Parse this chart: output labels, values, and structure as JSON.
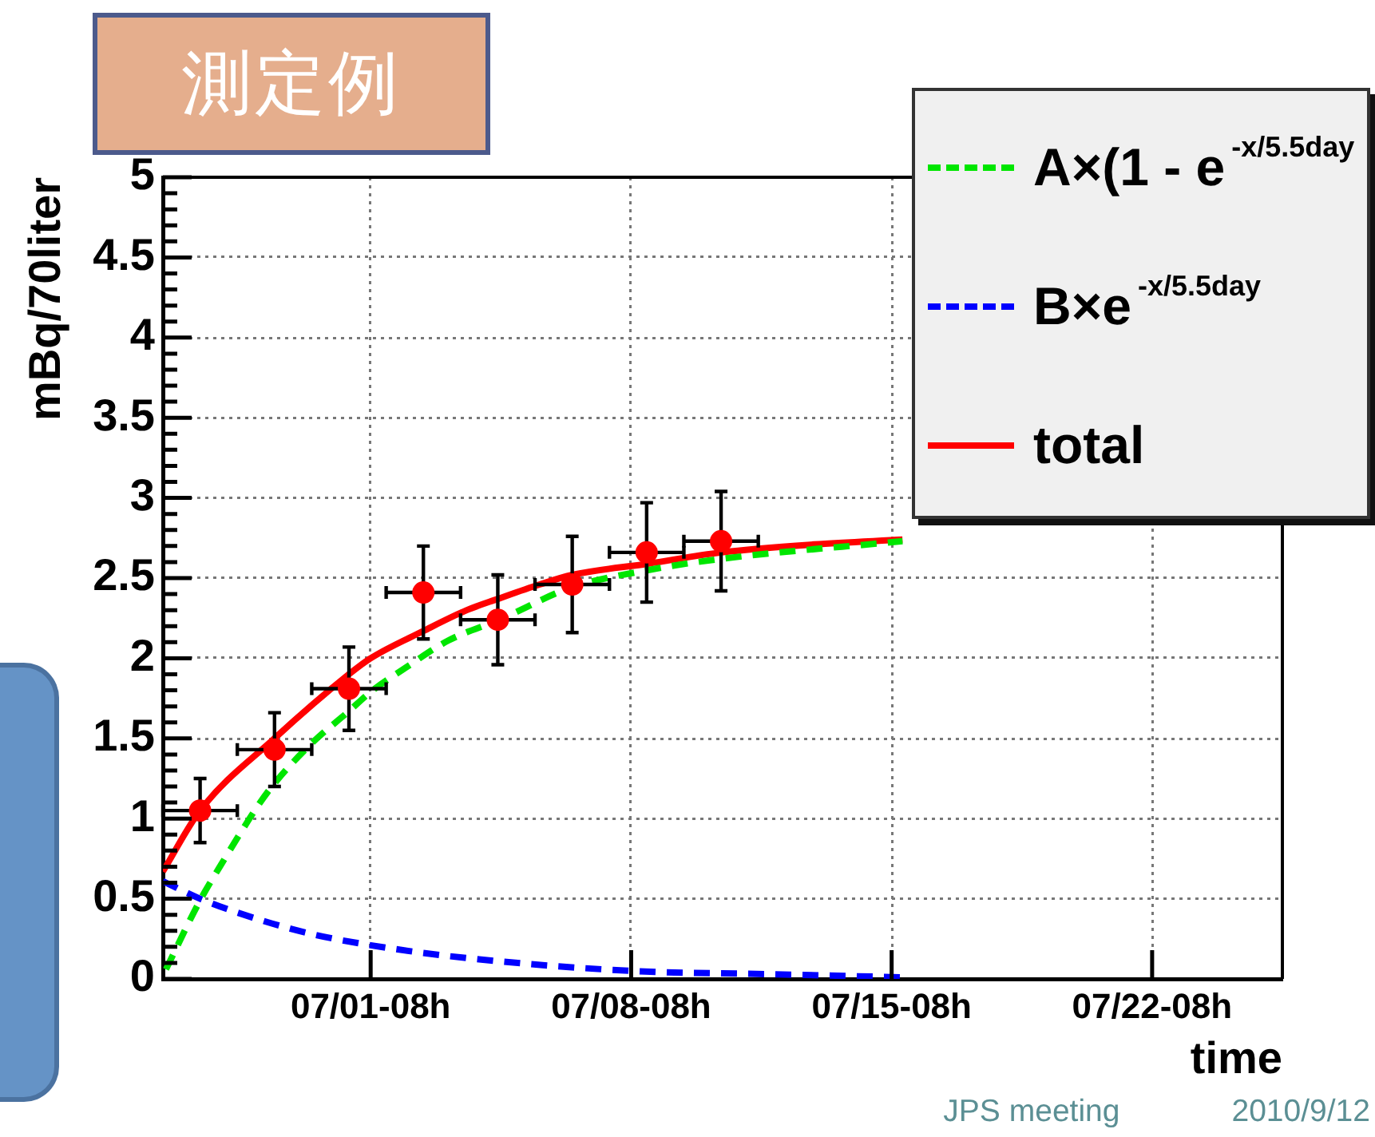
{
  "chart_data": {
    "type": "line",
    "title": "測定例",
    "xlabel": "time",
    "ylabel": "mBq/70liter",
    "annotations": [
      "JPS meeting",
      "2010/9/12"
    ],
    "xlim": [
      "--06-25T18:00",
      "--07-25T20:00"
    ],
    "xticks": [
      {
        "value": "--07-01T08:00",
        "label": "07/01-08h"
      },
      {
        "value": "--07-08T08:00",
        "label": "07/08-08h"
      },
      {
        "value": "--07-15T08:00",
        "label": "07/15-08h"
      },
      {
        "value": "--07-22T08:00",
        "label": "07/22-08h"
      }
    ],
    "ylim": [
      0,
      5
    ],
    "yticks": [
      0,
      {
        "value": 0.1,
        "label": null
      },
      {
        "value": 0.2,
        "label": null
      },
      {
        "value": 0.3,
        "label": null
      },
      {
        "value": 0.4,
        "label": null
      },
      0.5,
      {
        "value": 0.6,
        "label": null
      },
      {
        "value": 0.7,
        "label": null
      },
      {
        "value": 0.8,
        "label": null
      },
      {
        "value": 0.9,
        "label": null
      },
      1,
      {
        "value": 1.1,
        "label": null
      },
      {
        "value": 1.2,
        "label": null
      },
      {
        "value": 1.3,
        "label": null
      },
      {
        "value": 1.4,
        "label": null
      },
      1.5,
      {
        "value": 1.6,
        "label": null
      },
      {
        "value": 1.7,
        "label": null
      },
      {
        "value": 1.8,
        "label": null
      },
      {
        "value": 1.9,
        "label": null
      },
      2,
      {
        "value": 2.1,
        "label": null
      },
      {
        "value": 2.2,
        "label": null
      },
      {
        "value": 2.3,
        "label": null
      },
      {
        "value": 2.4,
        "label": null
      },
      2.5,
      {
        "value": 2.6,
        "label": null
      },
      {
        "value": 2.7,
        "label": null
      },
      {
        "value": 2.8,
        "label": null
      },
      {
        "value": 2.9,
        "label": null
      },
      3,
      {
        "value": 3.1,
        "label": null
      },
      {
        "value": 3.2,
        "label": null
      },
      {
        "value": 3.3,
        "label": null
      },
      {
        "value": 3.4,
        "label": null
      },
      3.5,
      {
        "value": 3.6,
        "label": null
      },
      {
        "value": 3.7,
        "label": null
      },
      {
        "value": 3.8,
        "label": null
      },
      {
        "value": 3.9,
        "label": null
      },
      4,
      {
        "value": 4.1,
        "label": null
      },
      {
        "value": 4.2,
        "label": null
      },
      {
        "value": 4.3,
        "label": null
      },
      {
        "value": 4.4,
        "label": null
      },
      4.5,
      {
        "value": 4.6,
        "label": null
      },
      {
        "value": 4.7,
        "label": null
      },
      {
        "value": 4.8,
        "label": null
      },
      {
        "value": 4.9,
        "label": null
      },
      5
    ],
    "grid": true,
    "legend": "top right",
    "series": [
      {
        "type": "scatter",
        "color": "#ff0000",
        "marker": "circle",
        "x": [
          "--06-26T18:00",
          "--06-28T18:00",
          "--06-30T18:00",
          "--07-02T18:00",
          "--07-04T18:00",
          "--07-06T18:00",
          "--07-08T18:00",
          "--07-10T18:00"
        ],
        "values": [
          1.05,
          1.43,
          1.81,
          2.41,
          2.24,
          2.46,
          2.66,
          2.73
        ],
        "errors": [
          0.2,
          0.23,
          0.26,
          0.29,
          0.28,
          0.3,
          0.31,
          0.31
        ],
        "xerrors": [
          1,
          1,
          1,
          1,
          1,
          1,
          1,
          1
        ]
      },
      {
        "name": "A×(1 - e$^{-x/5.5day}$",
        "color": "#00e600",
        "line_style": "dashed",
        "x": [
          "--06-25T20:00",
          "--06-26T18:00",
          "--06-27T08:00",
          "--06-28T08:00",
          "--06-28T18:00",
          "--06-29T18:00",
          "--06-30T18:00",
          "--07-01T08:00",
          "--07-02T08:00",
          "--07-03T10:00",
          "--07-04T19:00",
          "--07-06T17:00",
          "--07-08T19:00",
          "--07-10T18:00",
          "--07-15T15:00"
        ],
        "values": [
          0.06,
          0.49,
          0.72,
          1.09,
          1.22,
          1.47,
          1.67,
          1.79,
          1.95,
          2.11,
          2.24,
          2.44,
          2.55,
          2.62,
          2.73
        ]
      },
      {
        "name": "B×e$^{-x/5.5day}$",
        "color": "#0000ff",
        "line_style": "dashed",
        "x": [
          "--06-25T18:00",
          "--06-26T18:00",
          "--06-28T08:00",
          "--06-29T18:00",
          "--07-01T08:00",
          "--07-03T22:00",
          "--07-08T08:00",
          "--07-12T00:00",
          "--07-15T15:00"
        ],
        "values": [
          0.61,
          0.5,
          0.37,
          0.28,
          0.21,
          0.13,
          0.05,
          0.03,
          0.01
        ]
      },
      {
        "name": "total",
        "color": "#ff0000",
        "line_style": "solid",
        "x": [
          "--06-25T18:00",
          "--06-26T18:00",
          "--06-28T18:00",
          "--06-30T18:00",
          "--07-01T08:00",
          "--07-02T18:00",
          "--07-03T22:00",
          "--07-04T18:00",
          "--07-05T21:00",
          "--07-06T18:00",
          "--07-08T19:00",
          "--07-10T18:00",
          "--07-13T06:00",
          "--07-15T15:00"
        ],
        "values": [
          0.67,
          1.05,
          1.5,
          1.9,
          2.0,
          2.17,
          2.3,
          2.37,
          2.46,
          2.52,
          2.59,
          2.66,
          2.71,
          2.74
        ]
      }
    ]
  }
}
